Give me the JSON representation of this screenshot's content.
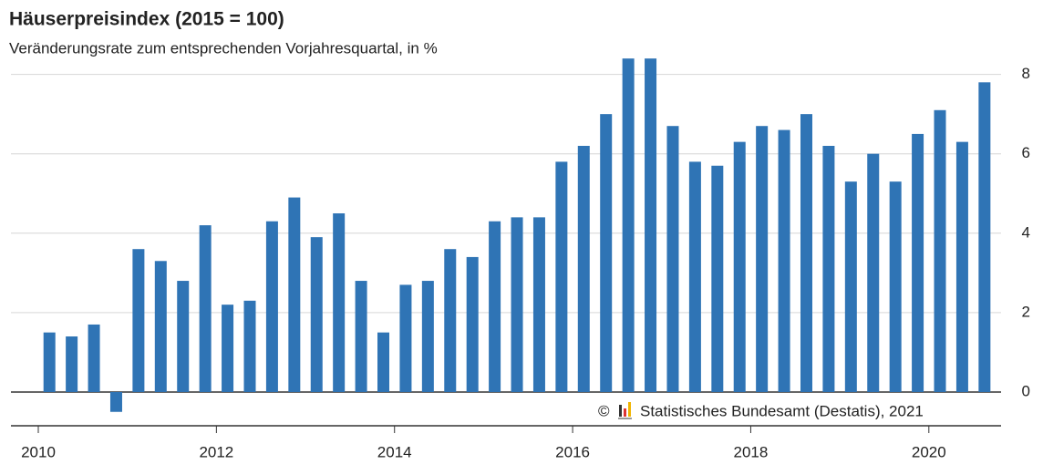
{
  "chart_data": {
    "type": "bar",
    "title": "Häuserpreisindex (2015 = 100)",
    "subtitle": "Veränderungsrate zum entsprechenden Vorjahresquartal, in %",
    "source_symbol": "©",
    "source": "Statistisches Bundesamt (Destatis), 2021",
    "categories": [
      "2010",
      null,
      null,
      null,
      null,
      null,
      null,
      null,
      "2012",
      null,
      null,
      null,
      null,
      null,
      null,
      null,
      "2014",
      null,
      null,
      null,
      null,
      null,
      null,
      null,
      "2016",
      null,
      null,
      null,
      null,
      null,
      null,
      null,
      "2018",
      null,
      null,
      null,
      null,
      null,
      null,
      null,
      "2020",
      null,
      null
    ],
    "values": [
      1.5,
      1.4,
      1.7,
      -0.5,
      3.6,
      3.3,
      2.8,
      4.2,
      2.2,
      2.3,
      4.3,
      4.9,
      3.9,
      4.5,
      2.8,
      1.5,
      2.7,
      2.8,
      3.6,
      3.4,
      4.3,
      4.4,
      4.4,
      5.8,
      6.2,
      7.0,
      8.4,
      8.4,
      6.7,
      5.8,
      5.7,
      6.3,
      6.7,
      6.6,
      7.0,
      6.2,
      5.3,
      6.0,
      5.3,
      6.5,
      7.1,
      6.3,
      7.8
    ],
    "color": "#2f74b5",
    "ylim": [
      -0.85,
      8.45
    ],
    "yticks": [
      0,
      2,
      4,
      6,
      8
    ],
    "grid": true
  }
}
